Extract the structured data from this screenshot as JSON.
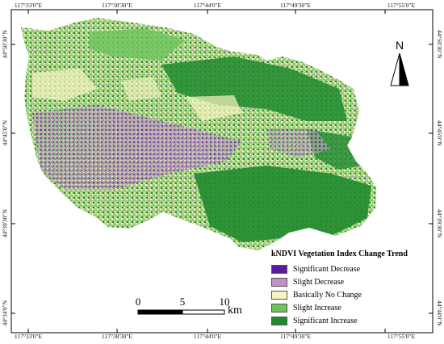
{
  "grid": {
    "top_labels": [
      "117°33'0\"E",
      "117°38'30\"E",
      "117°44'0\"E",
      "117°49'30\"E",
      "117°55'0\"E"
    ],
    "bottom_labels": [
      "117°33'0\"E",
      "117°38'30\"E",
      "117°44'0\"E",
      "117°49'30\"E",
      "117°55'0\"E"
    ],
    "left_labels": [
      "44°50'30\"N",
      "44°45'0\"N",
      "44°39'30\"N",
      "44°34'0\"N"
    ],
    "right_labels": [
      "44°50'30\"N",
      "44°45'0\"N",
      "44°39'30\"N",
      "44°34'0\"N"
    ]
  },
  "north": {
    "letter": "N"
  },
  "scale": {
    "labels": [
      "0",
      "5",
      "10"
    ],
    "unit": "km"
  },
  "legend": {
    "title": "kNDVI Vegetation Index Change Trend",
    "items": [
      {
        "label": "Significant Decrease",
        "color": "#5a1a9e"
      },
      {
        "label": "Slight Decrease",
        "color": "#c090c8"
      },
      {
        "label": "Basically No Change",
        "color": "#f7f4c2"
      },
      {
        "label": "Slight Increase",
        "color": "#6cc45c"
      },
      {
        "label": "Significant Increase",
        "color": "#1f8a2e"
      }
    ]
  }
}
